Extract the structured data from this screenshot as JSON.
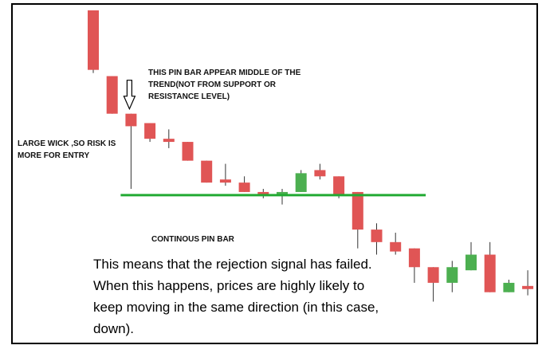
{
  "chart_data": {
    "type": "candlestick",
    "title": "",
    "xlabel": "",
    "ylabel": "",
    "ylim": [
      0,
      100
    ],
    "grid": false,
    "legend": "none",
    "colors": {
      "bearish": "#e05555",
      "bullish": "#4caf50",
      "level_line": "#22aa33"
    },
    "candles": [
      {
        "open": 100,
        "close": 81,
        "high": 100,
        "low": 80
      },
      {
        "open": 79,
        "close": 67,
        "high": 79,
        "low": 67
      },
      {
        "open": 67,
        "close": 63,
        "high": 67,
        "low": 43
      },
      {
        "open": 64,
        "close": 59,
        "high": 64,
        "low": 58
      },
      {
        "open": 59,
        "close": 58,
        "high": 62,
        "low": 56
      },
      {
        "open": 58,
        "close": 52,
        "high": 58,
        "low": 52
      },
      {
        "open": 52,
        "close": 45,
        "high": 52,
        "low": 45
      },
      {
        "open": 46,
        "close": 45,
        "high": 51,
        "low": 44
      },
      {
        "open": 45,
        "close": 42,
        "high": 47,
        "low": 42
      },
      {
        "open": 42,
        "close": 41,
        "high": 43,
        "low": 40
      },
      {
        "open": 41,
        "close": 42,
        "high": 43,
        "low": 38
      },
      {
        "open": 42,
        "close": 48,
        "high": 49,
        "low": 42
      },
      {
        "open": 49,
        "close": 47,
        "high": 51,
        "low": 46
      },
      {
        "open": 47,
        "close": 41,
        "high": 47,
        "low": 40
      },
      {
        "open": 42,
        "close": 30,
        "high": 42,
        "low": 24
      },
      {
        "open": 30,
        "close": 26,
        "high": 32,
        "low": 22
      },
      {
        "open": 26,
        "close": 23,
        "high": 29,
        "low": 22
      },
      {
        "open": 24,
        "close": 18,
        "high": 24,
        "low": 13
      },
      {
        "open": 18,
        "close": 13,
        "high": 18,
        "low": 7
      },
      {
        "open": 13,
        "close": 18,
        "high": 20,
        "low": 10
      },
      {
        "open": 17,
        "close": 22,
        "high": 26,
        "low": 17
      },
      {
        "open": 22,
        "close": 10,
        "high": 26,
        "low": 10
      },
      {
        "open": 10,
        "close": 13,
        "high": 14,
        "low": 10
      },
      {
        "open": 12,
        "close": 11,
        "high": 17,
        "low": 9
      }
    ],
    "support_level": 41,
    "annotations": [
      {
        "id": "pin",
        "text": "THIS PIN BAR APPEAR MIDDLE OF THE TREND(NOT FROM SUPPORT OR RESISTANCE LEVEL)",
        "points_to_candle": 2
      },
      {
        "id": "wick",
        "text": "LARGE WICK ,SO RISK IS MORE FOR ENTRY"
      },
      {
        "id": "cont",
        "text": "CONTINOUS PIN BAR"
      }
    ]
  },
  "explanation": "This means that the rejection signal has failed.  When this happens, prices are highly likely to keep moving in the same direction (in this case, down)."
}
